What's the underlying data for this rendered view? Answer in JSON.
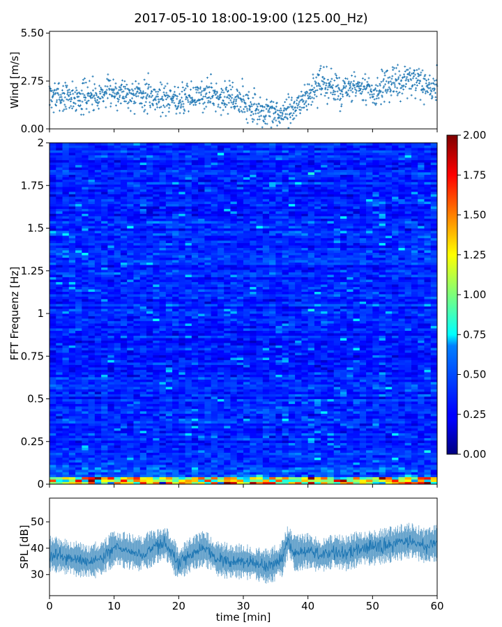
{
  "chart_data": [
    {
      "type": "scatter",
      "title": "2017-05-10 18:00-19:00 (125.00_Hz)",
      "ylabel": "Wind [m/s]",
      "xlim": [
        0,
        60
      ],
      "ylim": [
        0,
        5.6
      ],
      "yticks": [
        "0.00",
        "2.75",
        "5.50"
      ],
      "yticks_values": [
        0,
        2.75,
        5.5
      ],
      "color": "#1f77b4",
      "series": [
        {
          "x": [
            0,
            5,
            10,
            15,
            20,
            25,
            30,
            33,
            35,
            37,
            40,
            42,
            45,
            48,
            50,
            55,
            58,
            60
          ],
          "values": [
            1.9,
            1.8,
            2.2,
            1.9,
            1.7,
            2.0,
            1.6,
            0.9,
            0.8,
            0.9,
            1.9,
            2.6,
            2.2,
            2.3,
            2.1,
            2.8,
            2.5,
            2.3
          ]
        }
      ]
    },
    {
      "type": "heatmap",
      "ylabel": "FFT Frequenz [Hz]",
      "xlim": [
        0,
        60
      ],
      "ylim": [
        0,
        2
      ],
      "yticks": [
        "0",
        "0.25",
        "0.5",
        "0.75",
        "1",
        "1.25",
        "1.5",
        "1.75",
        "2"
      ],
      "yticks_values": [
        0,
        0.25,
        0.5,
        0.75,
        1,
        1.25,
        1.5,
        1.75,
        2
      ],
      "colorbar": {
        "range": [
          0,
          2
        ],
        "colormap": "jet",
        "ticks": [
          "0.00",
          "0.25",
          "0.50",
          "0.75",
          "1.00",
          "1.25",
          "1.50",
          "1.75",
          "2.00"
        ],
        "ticks_values": [
          0,
          0.25,
          0.5,
          0.75,
          1,
          1.25,
          1.5,
          1.75,
          2
        ]
      },
      "baseline_level": 0.3,
      "low_freq_band": {
        "freq_max": 0.05,
        "level": 1.2
      }
    },
    {
      "type": "line",
      "ylabel": "SPL [dB]",
      "xlabel": "time [min]",
      "xlim": [
        0,
        60
      ],
      "ylim": [
        22,
        59
      ],
      "xticks": [
        "0",
        "10",
        "20",
        "30",
        "40",
        "50",
        "60"
      ],
      "xticks_values": [
        0,
        10,
        20,
        30,
        40,
        50,
        60
      ],
      "yticks": [
        "30",
        "40",
        "50"
      ],
      "yticks_values": [
        30,
        40,
        50
      ],
      "color": "#1f77b4",
      "series": [
        {
          "x": [
            0,
            2,
            4,
            6,
            8,
            10,
            12,
            14,
            16,
            18,
            20,
            22,
            24,
            26,
            28,
            30,
            32,
            34,
            36,
            37,
            38,
            40,
            42,
            44,
            46,
            48,
            50,
            52,
            54,
            56,
            58,
            60
          ],
          "values": [
            38,
            37,
            36,
            35,
            36,
            40,
            39,
            38,
            40,
            42,
            34,
            38,
            40,
            36,
            35,
            35,
            34,
            33,
            36,
            43,
            38,
            39,
            37,
            39,
            38,
            40,
            40,
            41,
            42,
            43,
            41,
            42
          ]
        }
      ]
    }
  ]
}
